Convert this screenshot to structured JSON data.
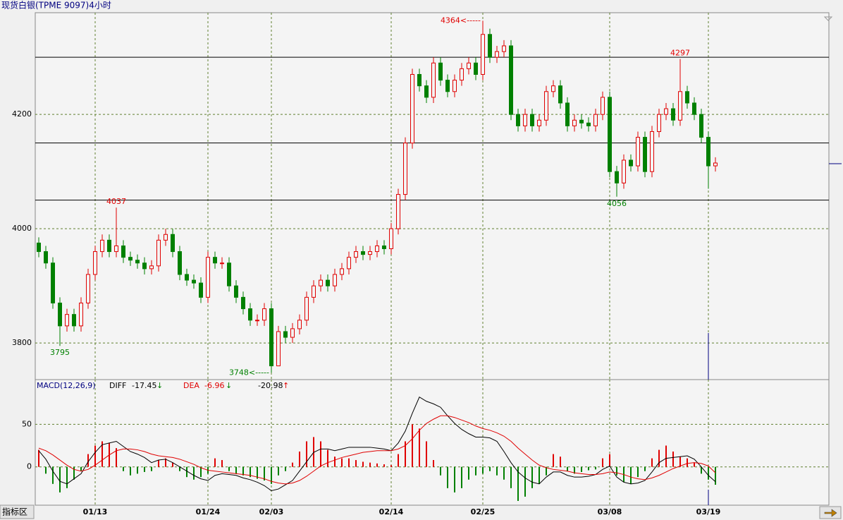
{
  "title": "现货白银(TPME 9097)4小时",
  "chart_data": [
    {
      "type": "candlestick",
      "categories": [
        null,
        null,
        null,
        null,
        null,
        null,
        null,
        null,
        "01/13",
        null,
        null,
        null,
        null,
        null,
        null,
        null,
        null,
        null,
        null,
        null,
        null,
        null,
        null,
        null,
        "01/24",
        null,
        null,
        null,
        null,
        null,
        null,
        null,
        null,
        "02/03",
        null,
        null,
        null,
        null,
        null,
        null,
        null,
        null,
        null,
        null,
        null,
        null,
        null,
        null,
        null,
        null,
        "02/14",
        null,
        null,
        null,
        null,
        null,
        null,
        null,
        null,
        null,
        null,
        null,
        null,
        "02/25",
        null,
        null,
        null,
        null,
        null,
        null,
        null,
        null,
        null,
        null,
        null,
        null,
        null,
        null,
        null,
        null,
        null,
        "03/08",
        null,
        null,
        null,
        null,
        null,
        null,
        null,
        null,
        null,
        null,
        null,
        null,
        null,
        "03/19",
        null
      ],
      "open": [
        3975,
        3960,
        3940,
        3870,
        3830,
        3850,
        3830,
        3870,
        3920,
        3960,
        3980,
        3960,
        3970,
        3950,
        3945,
        3940,
        3930,
        3935,
        3980,
        3990,
        3960,
        3920,
        3910,
        3905,
        3880,
        3950,
        3940,
        3940,
        3900,
        3880,
        3860,
        3840,
        3840,
        3860,
        3760,
        3820,
        3810,
        3825,
        3840,
        3880,
        3900,
        3910,
        3900,
        3920,
        3930,
        3950,
        3960,
        3955,
        3960,
        3970,
        3965,
        4000,
        4060,
        4150,
        4270,
        4250,
        4230,
        4290,
        4260,
        4240,
        4260,
        4280,
        4290,
        4270,
        4340,
        4300,
        4310,
        4320,
        4200,
        4180,
        4200,
        4180,
        4190,
        4240,
        4250,
        4220,
        4180,
        4190,
        4185,
        4180,
        4200,
        4230,
        4100,
        4080,
        4120,
        4110,
        4160,
        4100,
        4170,
        4200,
        4210,
        4190,
        4240,
        4220,
        4200,
        4160,
        4110
      ],
      "high": [
        3985,
        3970,
        3950,
        3880,
        3860,
        3860,
        3880,
        3930,
        3970,
        3990,
        3990,
        4037,
        3980,
        3960,
        3955,
        3950,
        3945,
        3990,
        4000,
        4000,
        3970,
        3930,
        3920,
        3915,
        3960,
        3960,
        3950,
        3950,
        3910,
        3890,
        3870,
        3850,
        3870,
        3870,
        3830,
        3830,
        3835,
        3850,
        3890,
        3910,
        3920,
        3920,
        3930,
        3940,
        3960,
        3970,
        3970,
        3970,
        3980,
        3980,
        4010,
        4070,
        4160,
        4280,
        4280,
        4260,
        4300,
        4300,
        4270,
        4270,
        4290,
        4300,
        4300,
        4364,
        4350,
        4320,
        4330,
        4330,
        4210,
        4210,
        4210,
        4200,
        4250,
        4260,
        4260,
        4230,
        4200,
        4200,
        4195,
        4210,
        4240,
        4240,
        4110,
        4130,
        4130,
        4170,
        4170,
        4180,
        4210,
        4220,
        4220,
        4297,
        4250,
        4230,
        4210,
        4170,
        4125
      ],
      "low": [
        3950,
        3930,
        3860,
        3795,
        3820,
        3820,
        3820,
        3860,
        3910,
        3950,
        3950,
        3950,
        3940,
        3935,
        3930,
        3920,
        3920,
        3925,
        3970,
        3950,
        3910,
        3900,
        3895,
        3870,
        3870,
        3930,
        3930,
        3890,
        3870,
        3850,
        3830,
        3830,
        3830,
        3748,
        3765,
        3800,
        3800,
        3815,
        3830,
        3870,
        3890,
        3890,
        3890,
        3910,
        3920,
        3940,
        3945,
        3945,
        3950,
        3955,
        3955,
        3990,
        4050,
        4140,
        4240,
        4220,
        4220,
        4250,
        4230,
        4230,
        4250,
        4270,
        4260,
        4260,
        4290,
        4290,
        4300,
        4190,
        4170,
        4170,
        4170,
        4170,
        4180,
        4230,
        4210,
        4170,
        4170,
        4175,
        4170,
        4170,
        4190,
        4090,
        4056,
        4070,
        4100,
        4100,
        4090,
        4090,
        4160,
        4190,
        4180,
        4180,
        4210,
        4190,
        4150,
        4070,
        4100
      ],
      "close": [
        3960,
        3940,
        3870,
        3830,
        3850,
        3830,
        3870,
        3920,
        3960,
        3980,
        3960,
        3970,
        3950,
        3945,
        3940,
        3930,
        3935,
        3980,
        3990,
        3960,
        3920,
        3910,
        3905,
        3880,
        3950,
        3940,
        3940,
        3900,
        3880,
        3860,
        3840,
        3840,
        3860,
        3760,
        3820,
        3810,
        3825,
        3840,
        3880,
        3900,
        3910,
        3900,
        3920,
        3930,
        3950,
        3960,
        3955,
        3960,
        3970,
        3965,
        4000,
        4060,
        4150,
        4270,
        4250,
        4230,
        4290,
        4260,
        4240,
        4260,
        4280,
        4290,
        4270,
        4340,
        4300,
        4310,
        4320,
        4200,
        4180,
        4200,
        4180,
        4190,
        4240,
        4250,
        4220,
        4180,
        4190,
        4185,
        4180,
        4200,
        4230,
        4100,
        4080,
        4120,
        4110,
        4160,
        4100,
        4170,
        4200,
        4210,
        4190,
        4240,
        4220,
        4200,
        4160,
        4110,
        4115
      ],
      "up_color": "#e00000",
      "down_color": "#008000",
      "ylim": [
        3736,
        4378
      ],
      "yticks": [
        3800,
        4000,
        4200
      ],
      "grid": true,
      "hlines": [
        4050,
        4150,
        4300
      ],
      "annotations": [
        {
          "value": 4364,
          "label": "4364<-----"
        },
        4297,
        4056,
        3795,
        4037,
        {
          "value": 3748,
          "label": "3748<-----"
        }
      ]
    },
    {
      "type": "macd",
      "label": "MACD(12,26,9)",
      "series": [
        {
          "name": "DIFF",
          "color": "#000000",
          "arrow": "↓",
          "values": [
            19,
            9,
            -5,
            -17,
            -20,
            -14,
            -8,
            6,
            17,
            26,
            28,
            30,
            24,
            18,
            15,
            11,
            5,
            8,
            9,
            5,
            0,
            -5,
            -10,
            -14,
            -16,
            -10,
            -8,
            -9,
            -10,
            -13,
            -15,
            -18,
            -22,
            -28,
            -26,
            -21,
            -16,
            -5,
            6,
            17,
            21,
            21,
            19,
            21,
            23,
            23,
            23,
            23,
            22,
            21,
            19,
            28,
            42,
            63,
            82,
            77,
            74,
            70,
            60,
            51,
            44,
            39,
            35,
            35,
            34,
            30,
            18,
            5,
            -6,
            -13,
            -18,
            -20,
            -12,
            -6,
            -6,
            -10,
            -12,
            -12,
            -11,
            -9,
            -3,
            1,
            -12,
            -18,
            -20,
            -19,
            -16,
            -6,
            5,
            10,
            11,
            12,
            13,
            9,
            0,
            -10,
            -17.45
          ]
        },
        {
          "name": "DEA",
          "color": "#e00000",
          "arrow": "↓",
          "values": [
            22,
            19,
            14,
            8,
            2,
            -3,
            -5,
            -3,
            2,
            8,
            14,
            19,
            21,
            21,
            20,
            18,
            15,
            13,
            12,
            11,
            9,
            6,
            3,
            -1,
            -4,
            -5,
            -6,
            -7,
            -8,
            -9,
            -10,
            -12,
            -14,
            -17,
            -19,
            -20,
            -19,
            -16,
            -11,
            -5,
            1,
            5,
            8,
            11,
            13,
            15,
            17,
            18,
            19,
            19,
            19,
            21,
            25,
            33,
            43,
            51,
            56,
            60,
            60,
            58,
            55,
            52,
            48,
            45,
            43,
            40,
            36,
            30,
            22,
            15,
            8,
            2,
            -1,
            -3,
            -4,
            -5,
            -7,
            -8,
            -9,
            -9,
            -8,
            -6,
            -7,
            -9,
            -12,
            -14,
            -15,
            -13,
            -10,
            -6,
            -2,
            1,
            4,
            5,
            4,
            1,
            -6.96
          ]
        }
      ],
      "histogram": {
        "arrow": "↑",
        "up_color": "#e00000",
        "down_color": "#008000",
        "values": [
          20,
          -8,
          -20,
          -30,
          -25,
          -15,
          -5,
          15,
          25,
          30,
          28,
          22,
          -5,
          -10,
          -8,
          -6,
          -5,
          8,
          10,
          5,
          -5,
          -12,
          -15,
          -12,
          -8,
          10,
          8,
          -5,
          -8,
          -10,
          -12,
          -14,
          -16,
          -20,
          -10,
          -5,
          5,
          18,
          30,
          35,
          30,
          20,
          12,
          10,
          10,
          8,
          6,
          5,
          4,
          3,
          2,
          15,
          30,
          50,
          45,
          30,
          8,
          -10,
          -25,
          -30,
          -25,
          -15,
          -10,
          -8,
          -5,
          -10,
          -15,
          -25,
          -40,
          -35,
          -25,
          -20,
          -10,
          15,
          12,
          -5,
          -8,
          -6,
          -4,
          -3,
          10,
          15,
          -10,
          -18,
          -20,
          -12,
          -5,
          10,
          20,
          25,
          18,
          12,
          10,
          5,
          -8,
          -15,
          -20.98
        ]
      },
      "ylim": [
        -45,
        102.5
      ],
      "yticks": [
        0,
        50
      ],
      "grid": true
    }
  ],
  "footer": {
    "button": "指标区"
  }
}
